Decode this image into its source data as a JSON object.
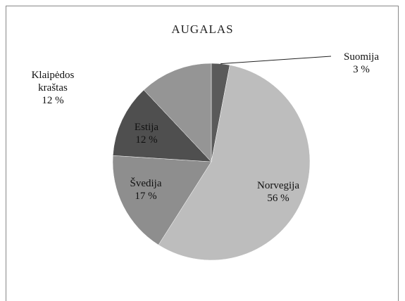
{
  "chart_data": {
    "type": "pie",
    "title": "AUGALAS",
    "categories": [
      "Suomija",
      "Norvegija",
      "Švedija",
      "Estija",
      "Klaipėdos kraštas"
    ],
    "values": [
      3,
      56,
      17,
      12,
      12
    ],
    "value_labels": [
      "3 %",
      "56 %",
      "17 %",
      "12 %",
      "12 %"
    ],
    "colors": [
      "#5a5a5a",
      "#bdbdbd",
      "#8e8e8e",
      "#4f4f4f",
      "#959595"
    ]
  }
}
